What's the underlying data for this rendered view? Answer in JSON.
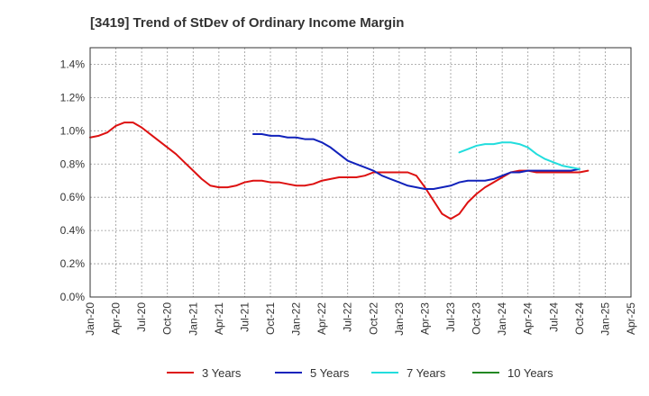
{
  "chart_data": {
    "type": "line",
    "title": "[3419]  Trend of StDev of Ordinary Income Margin",
    "xlabel": "",
    "ylabel": "",
    "ylim": [
      0,
      0.015
    ],
    "yticks": [
      0,
      0.002,
      0.004,
      0.006,
      0.008,
      0.01,
      0.012,
      0.014
    ],
    "ytick_labels": [
      "0.0%",
      "0.2%",
      "0.4%",
      "0.6%",
      "0.8%",
      "1.0%",
      "1.2%",
      "1.4%"
    ],
    "xlim": [
      "2020-01",
      "2025-04"
    ],
    "xtick_labels": [
      "Jan-20",
      "Apr-20",
      "Jul-20",
      "Oct-20",
      "Jan-21",
      "Apr-21",
      "Jul-21",
      "Oct-21",
      "Jan-22",
      "Apr-22",
      "Jul-22",
      "Oct-22",
      "Jan-23",
      "Apr-23",
      "Jul-23",
      "Oct-23",
      "Jan-24",
      "Apr-24",
      "Jul-24",
      "Oct-24",
      "Jan-25",
      "Apr-25"
    ],
    "grid": true,
    "legend_position": "bottom",
    "series": [
      {
        "name": "3 Years",
        "color": "#dd1111",
        "points": [
          [
            "2020-01",
            0.0096
          ],
          [
            "2020-02",
            0.0097
          ],
          [
            "2020-03",
            0.0099
          ],
          [
            "2020-04",
            0.0103
          ],
          [
            "2020-05",
            0.0105
          ],
          [
            "2020-06",
            0.0105
          ],
          [
            "2020-07",
            0.0102
          ],
          [
            "2020-08",
            0.0098
          ],
          [
            "2020-09",
            0.0094
          ],
          [
            "2020-10",
            0.009
          ],
          [
            "2020-11",
            0.0086
          ],
          [
            "2020-12",
            0.0081
          ],
          [
            "2021-01",
            0.0076
          ],
          [
            "2021-02",
            0.0071
          ],
          [
            "2021-03",
            0.0067
          ],
          [
            "2021-04",
            0.0066
          ],
          [
            "2021-05",
            0.0066
          ],
          [
            "2021-06",
            0.0067
          ],
          [
            "2021-07",
            0.0069
          ],
          [
            "2021-08",
            0.007
          ],
          [
            "2021-09",
            0.007
          ],
          [
            "2021-10",
            0.0069
          ],
          [
            "2021-11",
            0.0069
          ],
          [
            "2021-12",
            0.0068
          ],
          [
            "2022-01",
            0.0067
          ],
          [
            "2022-02",
            0.0067
          ],
          [
            "2022-03",
            0.0068
          ],
          [
            "2022-04",
            0.007
          ],
          [
            "2022-05",
            0.0071
          ],
          [
            "2022-06",
            0.0072
          ],
          [
            "2022-07",
            0.0072
          ],
          [
            "2022-08",
            0.0072
          ],
          [
            "2022-09",
            0.0073
          ],
          [
            "2022-10",
            0.0075
          ],
          [
            "2022-11",
            0.0075
          ],
          [
            "2022-12",
            0.0075
          ],
          [
            "2023-01",
            0.0075
          ],
          [
            "2023-02",
            0.0075
          ],
          [
            "2023-03",
            0.0073
          ],
          [
            "2023-04",
            0.0066
          ],
          [
            "2023-05",
            0.0058
          ],
          [
            "2023-06",
            0.005
          ],
          [
            "2023-07",
            0.0047
          ],
          [
            "2023-08",
            0.005
          ],
          [
            "2023-09",
            0.0057
          ],
          [
            "2023-10",
            0.0062
          ],
          [
            "2023-11",
            0.0066
          ],
          [
            "2023-12",
            0.0069
          ],
          [
            "2024-01",
            0.0072
          ],
          [
            "2024-02",
            0.0075
          ],
          [
            "2024-03",
            0.0076
          ],
          [
            "2024-04",
            0.0076
          ],
          [
            "2024-05",
            0.0075
          ],
          [
            "2024-06",
            0.0075
          ],
          [
            "2024-07",
            0.0075
          ],
          [
            "2024-08",
            0.0075
          ],
          [
            "2024-09",
            0.0075
          ],
          [
            "2024-10",
            0.0075
          ],
          [
            "2024-11",
            0.0076
          ]
        ]
      },
      {
        "name": "5 Years",
        "color": "#1122bb",
        "points": [
          [
            "2021-08",
            0.0098
          ],
          [
            "2021-09",
            0.0098
          ],
          [
            "2021-10",
            0.0097
          ],
          [
            "2021-11",
            0.0097
          ],
          [
            "2021-12",
            0.0096
          ],
          [
            "2022-01",
            0.0096
          ],
          [
            "2022-02",
            0.0095
          ],
          [
            "2022-03",
            0.0095
          ],
          [
            "2022-04",
            0.0093
          ],
          [
            "2022-05",
            0.009
          ],
          [
            "2022-06",
            0.0086
          ],
          [
            "2022-07",
            0.0082
          ],
          [
            "2022-08",
            0.008
          ],
          [
            "2022-09",
            0.0078
          ],
          [
            "2022-10",
            0.0076
          ],
          [
            "2022-11",
            0.0073
          ],
          [
            "2022-12",
            0.0071
          ],
          [
            "2023-01",
            0.0069
          ],
          [
            "2023-02",
            0.0067
          ],
          [
            "2023-03",
            0.0066
          ],
          [
            "2023-04",
            0.0065
          ],
          [
            "2023-05",
            0.0065
          ],
          [
            "2023-06",
            0.0066
          ],
          [
            "2023-07",
            0.0067
          ],
          [
            "2023-08",
            0.0069
          ],
          [
            "2023-09",
            0.007
          ],
          [
            "2023-10",
            0.007
          ],
          [
            "2023-11",
            0.007
          ],
          [
            "2023-12",
            0.0071
          ],
          [
            "2024-01",
            0.0073
          ],
          [
            "2024-02",
            0.0075
          ],
          [
            "2024-03",
            0.0075
          ],
          [
            "2024-04",
            0.0076
          ],
          [
            "2024-05",
            0.0076
          ],
          [
            "2024-06",
            0.0076
          ],
          [
            "2024-07",
            0.0076
          ],
          [
            "2024-08",
            0.0076
          ],
          [
            "2024-09",
            0.0076
          ],
          [
            "2024-10",
            0.0077
          ]
        ]
      },
      {
        "name": "7 Years",
        "color": "#22dddd",
        "points": [
          [
            "2023-08",
            0.0087
          ],
          [
            "2023-09",
            0.0089
          ],
          [
            "2023-10",
            0.0091
          ],
          [
            "2023-11",
            0.0092
          ],
          [
            "2023-12",
            0.0092
          ],
          [
            "2024-01",
            0.0093
          ],
          [
            "2024-02",
            0.0093
          ],
          [
            "2024-03",
            0.0092
          ],
          [
            "2024-04",
            0.009
          ],
          [
            "2024-05",
            0.0086
          ],
          [
            "2024-06",
            0.0083
          ],
          [
            "2024-07",
            0.0081
          ],
          [
            "2024-08",
            0.0079
          ],
          [
            "2024-09",
            0.0078
          ],
          [
            "2024-10",
            0.0077
          ]
        ]
      },
      {
        "name": "10 Years",
        "color": "#228822",
        "points": []
      }
    ]
  }
}
